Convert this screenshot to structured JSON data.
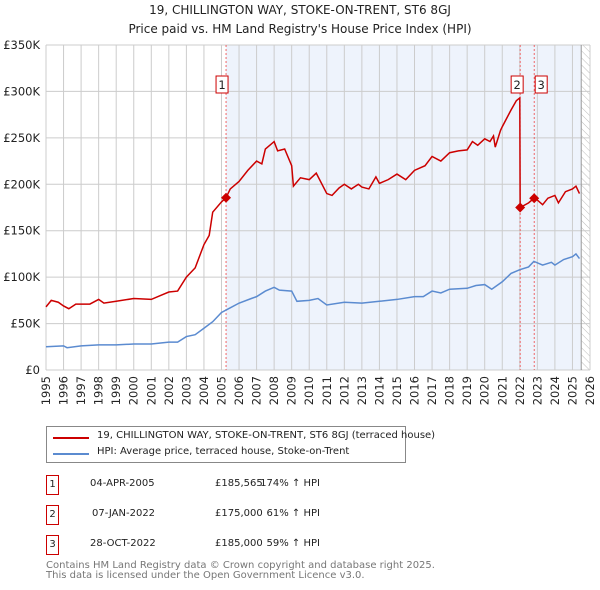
{
  "chart_data": {
    "type": "line",
    "title": "19, CHILLINGTON WAY, STOKE-ON-TRENT, ST6 8GJ",
    "subtitle": "Price paid vs. HM Land Registry's House Price Index (HPI)",
    "xlim": [
      1995,
      2026
    ],
    "ylim": [
      0,
      350000
    ],
    "yticks": [
      {
        "v": 0,
        "l": "£0"
      },
      {
        "v": 50000,
        "l": "£50K"
      },
      {
        "v": 100000,
        "l": "£100K"
      },
      {
        "v": 150000,
        "l": "£150K"
      },
      {
        "v": 200000,
        "l": "£200K"
      },
      {
        "v": 250000,
        "l": "£250K"
      },
      {
        "v": 300000,
        "l": "£300K"
      },
      {
        "v": 350000,
        "l": "£350K"
      }
    ],
    "xticks": [
      "1995",
      "1996",
      "1997",
      "1998",
      "1999",
      "2000",
      "2001",
      "2002",
      "2003",
      "2004",
      "2005",
      "2006",
      "2007",
      "2008",
      "2009",
      "2010",
      "2011",
      "2012",
      "2013",
      "2014",
      "2015",
      "2016",
      "2017",
      "2018",
      "2019",
      "2020",
      "2021",
      "2022",
      "2023",
      "2024",
      "2025",
      "2026"
    ],
    "grid": true,
    "series": [
      {
        "name": "19, CHILLINGTON WAY, STOKE-ON-TRENT, ST6 8GJ (terraced house)",
        "color": "#cc0000",
        "points": [
          [
            1995,
            68
          ],
          [
            1995.3,
            75
          ],
          [
            1995.7,
            73
          ],
          [
            1996,
            69
          ],
          [
            1996.3,
            66
          ],
          [
            1996.7,
            71
          ],
          [
            1997.5,
            71
          ],
          [
            1998,
            76
          ],
          [
            1998.3,
            72
          ],
          [
            1999,
            74
          ],
          [
            2000,
            77
          ],
          [
            2001,
            76
          ],
          [
            2001.5,
            80
          ],
          [
            2002,
            84
          ],
          [
            2002.5,
            85
          ],
          [
            2003,
            100
          ],
          [
            2003.5,
            110
          ],
          [
            2004,
            135
          ],
          [
            2004.3,
            145
          ],
          [
            2004.5,
            170
          ],
          [
            2005,
            181
          ],
          [
            2005.26,
            185.565
          ],
          [
            2005.5,
            195
          ],
          [
            2006,
            203
          ],
          [
            2006.5,
            215
          ],
          [
            2007,
            225
          ],
          [
            2007.3,
            222
          ],
          [
            2007.5,
            238
          ],
          [
            2008,
            246
          ],
          [
            2008.2,
            236
          ],
          [
            2008.6,
            238
          ],
          [
            2009,
            220
          ],
          [
            2009.1,
            198
          ],
          [
            2009.5,
            207
          ],
          [
            2010,
            205
          ],
          [
            2010.4,
            212
          ],
          [
            2011,
            190
          ],
          [
            2011.3,
            188
          ],
          [
            2011.7,
            196
          ],
          [
            2012,
            200
          ],
          [
            2012.4,
            195
          ],
          [
            2012.8,
            200
          ],
          [
            2013,
            197
          ],
          [
            2013.4,
            195
          ],
          [
            2013.8,
            208
          ],
          [
            2014,
            201
          ],
          [
            2014.5,
            205
          ],
          [
            2015,
            211
          ],
          [
            2015.5,
            205
          ],
          [
            2016,
            215
          ],
          [
            2016.6,
            220
          ],
          [
            2017,
            230
          ],
          [
            2017.5,
            225
          ],
          [
            2018,
            234
          ],
          [
            2018.5,
            236
          ],
          [
            2019,
            237
          ],
          [
            2019.3,
            246
          ],
          [
            2019.6,
            242
          ],
          [
            2020,
            249
          ],
          [
            2020.3,
            246
          ],
          [
            2020.5,
            252
          ],
          [
            2020.6,
            240
          ],
          [
            2020.9,
            258
          ],
          [
            2021,
            262
          ],
          [
            2021.5,
            280
          ],
          [
            2021.8,
            290
          ],
          [
            2022,
            293
          ],
          [
            2022.02,
            175
          ],
          [
            2022.5,
            180
          ],
          [
            2022.82,
            185
          ],
          [
            2023,
            183
          ],
          [
            2023.3,
            178
          ],
          [
            2023.6,
            185
          ],
          [
            2024,
            188
          ],
          [
            2024.2,
            180
          ],
          [
            2024.6,
            192
          ],
          [
            2025,
            195
          ],
          [
            2025.2,
            198
          ],
          [
            2025.4,
            190
          ]
        ]
      },
      {
        "name": "HPI: Average price, terraced house, Stoke-on-Trent",
        "color": "#5b8bd0",
        "points": [
          [
            1995,
            25
          ],
          [
            1996,
            26
          ],
          [
            1996.2,
            24
          ],
          [
            1997,
            26
          ],
          [
            1998,
            27
          ],
          [
            1999,
            27
          ],
          [
            2000,
            28
          ],
          [
            2001,
            28
          ],
          [
            2002,
            30
          ],
          [
            2002.5,
            30
          ],
          [
            2003,
            36
          ],
          [
            2003.5,
            38
          ],
          [
            2004,
            45
          ],
          [
            2004.5,
            52
          ],
          [
            2005,
            62
          ],
          [
            2005.5,
            67
          ],
          [
            2006,
            72
          ],
          [
            2006.7,
            77
          ],
          [
            2007,
            79
          ],
          [
            2007.5,
            85
          ],
          [
            2008,
            89
          ],
          [
            2008.3,
            86
          ],
          [
            2009,
            85
          ],
          [
            2009.3,
            74
          ],
          [
            2010,
            75
          ],
          [
            2010.5,
            77
          ],
          [
            2011,
            70
          ],
          [
            2012,
            73
          ],
          [
            2013,
            72
          ],
          [
            2014,
            74
          ],
          [
            2015,
            76
          ],
          [
            2016,
            79
          ],
          [
            2016.5,
            79
          ],
          [
            2017,
            85
          ],
          [
            2017.5,
            83
          ],
          [
            2018,
            87
          ],
          [
            2019,
            88
          ],
          [
            2019.5,
            91
          ],
          [
            2020,
            92
          ],
          [
            2020.4,
            87
          ],
          [
            2021,
            95
          ],
          [
            2021.5,
            104
          ],
          [
            2022,
            108
          ],
          [
            2022.5,
            111
          ],
          [
            2022.8,
            117
          ],
          [
            2023.3,
            113
          ],
          [
            2023.8,
            116
          ],
          [
            2024,
            113
          ],
          [
            2024.5,
            119
          ],
          [
            2025,
            122
          ],
          [
            2025.2,
            125
          ],
          [
            2025.4,
            120
          ]
        ]
      }
    ],
    "sales": [
      {
        "n": "1",
        "x": 2005.26,
        "y": 185.565
      },
      {
        "n": "2",
        "x": 2022.02,
        "y": 175
      },
      {
        "n": "3",
        "x": 2022.82,
        "y": 185
      }
    ],
    "y_units": "thousands GBP"
  },
  "legend": {
    "red": "19, CHILLINGTON WAY, STOKE-ON-TRENT, ST6 8GJ (terraced house)",
    "blue": "HPI: Average price, terraced house, Stoke-on-Trent"
  },
  "table": [
    {
      "n": "1",
      "date": "04-APR-2005",
      "price": "£185,565",
      "hpi": "174% ↑ HPI"
    },
    {
      "n": "2",
      "date": "07-JAN-2022",
      "price": "£175,000",
      "hpi": "61% ↑ HPI"
    },
    {
      "n": "3",
      "date": "28-OCT-2022",
      "price": "£185,000",
      "hpi": "59% ↑ HPI"
    }
  ],
  "footer": [
    "Contains HM Land Registry data © Crown copyright and database right 2025.",
    "This data is licensed under the Open Government Licence v3.0."
  ]
}
